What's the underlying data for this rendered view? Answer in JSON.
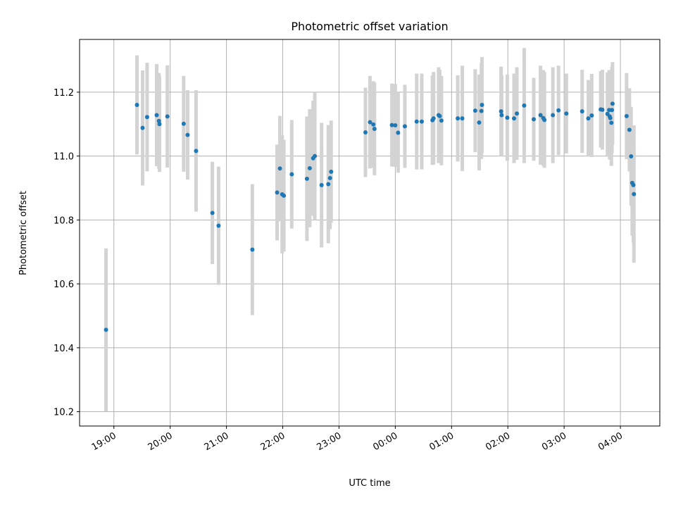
{
  "chart_data": {
    "type": "scatter",
    "title": "Photometric offset variation",
    "xlabel": "UTC time",
    "ylabel": "Photometric offset",
    "grid": true,
    "x_unit": "hours since 19:00 UTC",
    "xlim": [
      -0.61,
      9.7
    ],
    "ylim": [
      10.155,
      11.365
    ],
    "x_ticks": [
      {
        "value": 0,
        "label": "19:00"
      },
      {
        "value": 1,
        "label": "20:00"
      },
      {
        "value": 2,
        "label": "21:00"
      },
      {
        "value": 3,
        "label": "22:00"
      },
      {
        "value": 4,
        "label": "23:00"
      },
      {
        "value": 5,
        "label": "00:00"
      },
      {
        "value": 6,
        "label": "01:00"
      },
      {
        "value": 7,
        "label": "02:00"
      },
      {
        "value": 8,
        "label": "03:00"
      },
      {
        "value": 9,
        "label": "04:00"
      }
    ],
    "y_ticks": [
      {
        "value": 10.2,
        "label": "10.2"
      },
      {
        "value": 10.4,
        "label": "10.4"
      },
      {
        "value": 10.6,
        "label": "10.6"
      },
      {
        "value": 10.8,
        "label": "10.8"
      },
      {
        "value": 11.0,
        "label": "11.0"
      },
      {
        "value": 11.2,
        "label": "11.2"
      }
    ],
    "colors": {
      "point": "#1f77b4",
      "errorbar": "#d3d3d3",
      "grid": "#b0b0b0"
    },
    "series": [
      {
        "name": "offset",
        "x": [
          -0.14,
          0.41,
          0.51,
          0.59,
          0.76,
          0.8,
          0.81,
          0.95,
          1.24,
          1.31,
          1.46,
          1.75,
          1.86,
          2.46,
          2.9,
          2.95,
          2.99,
          3.02,
          3.16,
          3.43,
          3.48,
          3.54,
          3.57,
          3.69,
          3.81,
          3.84,
          3.86,
          4.47,
          4.55,
          4.61,
          4.63,
          4.94,
          5.0,
          5.05,
          5.17,
          5.38,
          5.47,
          5.66,
          5.68,
          5.77,
          5.79,
          5.82,
          6.11,
          6.19,
          6.42,
          6.49,
          6.53,
          6.54,
          6.88,
          6.89,
          6.99,
          7.11,
          7.16,
          7.29,
          7.46,
          7.58,
          7.63,
          7.65,
          7.8,
          7.9,
          8.04,
          8.32,
          8.43,
          8.49,
          8.65,
          8.68,
          8.77,
          8.8,
          8.81,
          8.82,
          8.84,
          8.85,
          8.86,
          9.11,
          9.16,
          9.19,
          9.21,
          9.23,
          9.24
        ],
        "y": [
          10.456,
          11.16,
          11.088,
          11.122,
          11.128,
          11.11,
          11.1,
          11.124,
          11.101,
          11.066,
          11.016,
          10.822,
          10.782,
          10.707,
          10.886,
          10.961,
          10.88,
          10.876,
          10.943,
          10.929,
          10.962,
          10.993,
          11.0,
          10.909,
          10.912,
          10.931,
          10.951,
          11.074,
          11.106,
          11.099,
          11.085,
          11.097,
          11.096,
          11.073,
          11.093,
          11.108,
          11.108,
          11.112,
          11.118,
          11.128,
          11.125,
          11.111,
          11.118,
          11.118,
          11.142,
          11.105,
          11.141,
          11.16,
          11.14,
          11.128,
          11.12,
          11.118,
          11.133,
          11.158,
          11.115,
          11.128,
          11.119,
          11.113,
          11.128,
          11.143,
          11.133,
          11.14,
          11.118,
          11.127,
          11.146,
          11.145,
          11.132,
          11.144,
          11.124,
          11.119,
          11.104,
          11.144,
          11.164,
          11.125,
          11.082,
          10.999,
          10.916,
          10.909,
          10.881
        ],
        "yerr": [
          0.255,
          0.155,
          0.18,
          0.17,
          0.16,
          0.15,
          0.15,
          0.16,
          0.15,
          0.14,
          0.19,
          0.16,
          0.185,
          0.205,
          0.15,
          0.165,
          0.185,
          0.175,
          0.17,
          0.195,
          0.185,
          0.18,
          0.2,
          0.195,
          0.185,
          0.16,
          0.16,
          0.14,
          0.145,
          0.135,
          0.145,
          0.13,
          0.13,
          0.125,
          0.13,
          0.15,
          0.15,
          0.14,
          0.145,
          0.15,
          0.145,
          0.14,
          0.135,
          0.165,
          0.13,
          0.15,
          0.15,
          0.15,
          0.14,
          0.125,
          0.135,
          0.14,
          0.145,
          0.18,
          0.13,
          0.155,
          0.15,
          0.15,
          0.15,
          0.14,
          0.125,
          0.13,
          0.12,
          0.13,
          0.12,
          0.125,
          0.13,
          0.125,
          0.135,
          0.12,
          0.135,
          0.135,
          0.13,
          0.135,
          0.13,
          0.155,
          0.165,
          0.18,
          0.215
        ]
      }
    ]
  }
}
